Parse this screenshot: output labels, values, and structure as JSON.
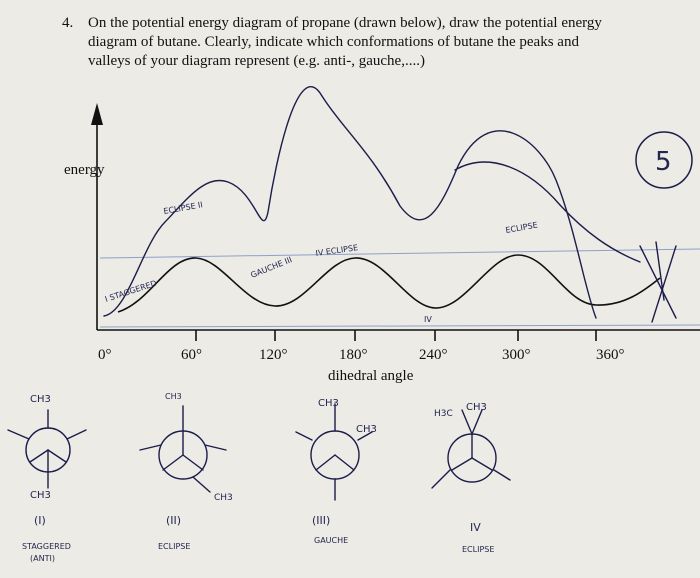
{
  "question": {
    "number": "4.",
    "lines": [
      "On the potential energy diagram of propane (drawn below), draw the potential energy",
      "diagram of butane. Clearly, indicate which conformations of butane the peaks and",
      "valleys of your diagram represent (e.g. anti-, gauche,....)"
    ]
  },
  "axes": {
    "ylabel": "energy",
    "xlabel": "dihedral angle",
    "xticks": [
      "0°",
      "60°",
      "120°",
      "180°",
      "240°",
      "300°",
      "360°"
    ]
  },
  "annotations": {
    "score": "5",
    "peak_labels": [
      "ECLIPSE II",
      "IV ECLIPSE",
      "ECLIPSE"
    ],
    "valley_labels": [
      "I STAGGERED",
      "GAUCHE III",
      "IV"
    ]
  },
  "newman": [
    {
      "front": "CH3",
      "back": "CH3",
      "numeral": "(I)",
      "name": "STAGGERED",
      "sub": "(ANTI)"
    },
    {
      "front": "CH3",
      "back": "CH3",
      "numeral": "(II)",
      "name": "ECLIPSE",
      "sub": ""
    },
    {
      "front": "CH3",
      "back": "CH3",
      "numeral": "(III)",
      "name": "GAUCHE",
      "sub": ""
    },
    {
      "front": "CH3",
      "back": "H3C",
      "numeral": "IV",
      "name": "ECLIPSE",
      "sub": ""
    }
  ],
  "colors": {
    "paper": "#ecebe6",
    "print": "#111111",
    "pen": "#1c1d4a",
    "rule": "#8ea0c8"
  }
}
